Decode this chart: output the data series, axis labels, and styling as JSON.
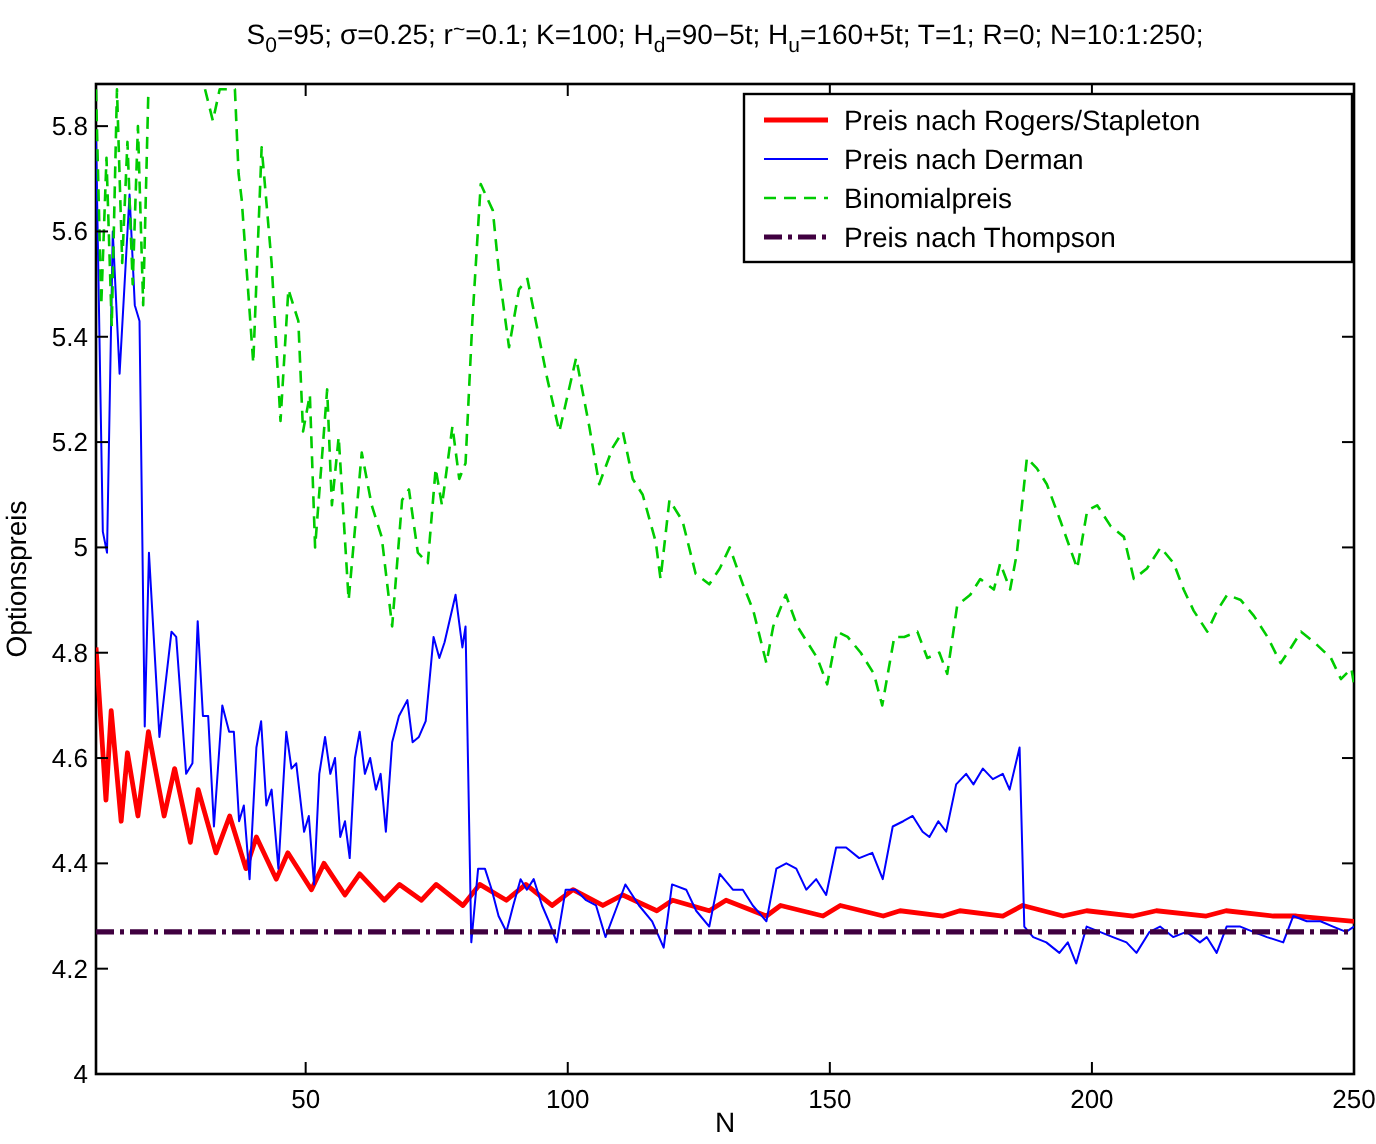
{
  "chart_data": {
    "type": "line",
    "title": "S$_{0}$=95; σ=0.25; r$^{~}$=0.1; K=100; H$_{d}$=90−5t; H$_{u}$=160+5t; T=1; R=0; N=10:1:250;",
    "xlabel": "N",
    "ylabel": "Optionspreis",
    "xlim": [
      10,
      250
    ],
    "ylim": [
      4,
      5.88
    ],
    "xticks": [
      50,
      100,
      150,
      200,
      250
    ],
    "yticks": [
      4,
      4.2,
      4.4,
      4.6,
      4.8,
      5,
      5.2,
      5.4,
      5.6,
      5.8
    ],
    "grid": false,
    "legend": "top right",
    "marker": "none",
    "series": [
      {
        "name": "Preis nach Rogers/Stapleton",
        "color": "#ff0000",
        "line_style": "solid",
        "x": [
          10,
          11.9,
          12.9,
          14.8,
          16,
          18,
          20,
          23,
          25,
          28,
          29.5,
          32.9,
          35.5,
          38.6,
          40.6,
          44.4,
          46.6,
          51.1,
          53.5,
          57.5,
          60.3,
          65,
          67.9,
          72.1,
          74.9,
          80,
          83.2,
          88.3,
          92,
          97,
          101,
          106.7,
          110.5,
          117,
          120,
          127,
          130.2,
          137.9,
          140.6,
          148.7,
          152,
          160.2,
          163.4,
          171.6,
          174.8,
          183,
          186.8,
          194.5,
          199,
          207.9,
          212.3,
          221.8,
          225.6,
          234.6,
          239,
          250
        ],
        "values": [
          4.81,
          4.52,
          4.69,
          4.48,
          4.61,
          4.49,
          4.65,
          4.49,
          4.58,
          4.44,
          4.54,
          4.42,
          4.49,
          4.39,
          4.45,
          4.37,
          4.42,
          4.35,
          4.4,
          4.34,
          4.38,
          4.33,
          4.36,
          4.33,
          4.36,
          4.32,
          4.36,
          4.33,
          4.36,
          4.32,
          4.35,
          4.32,
          4.34,
          4.31,
          4.33,
          4.31,
          4.33,
          4.3,
          4.32,
          4.3,
          4.32,
          4.3,
          4.31,
          4.3,
          4.31,
          4.3,
          4.32,
          4.3,
          4.31,
          4.3,
          4.31,
          4.3,
          4.31,
          4.3,
          4.3,
          4.29
        ]
      },
      {
        "name": "Preis nach Derman",
        "color": "#0000ff",
        "line_style": "solid",
        "x": [
          10,
          11.3,
          12.1,
          13.2,
          14.5,
          16.4,
          17.4,
          18.3,
          19.3,
          20.1,
          22.1,
          24.4,
          25.3,
          27.2,
          28.4,
          29.4,
          30.4,
          31.4,
          32.5,
          34.1,
          35.4,
          36.3,
          37.3,
          38.2,
          39.3,
          40.6,
          41.5,
          42.5,
          43.5,
          44.8,
          46.3,
          47.3,
          48.2,
          49.7,
          50.6,
          51.6,
          52.6,
          53.7,
          54.7,
          55.6,
          56.6,
          57.5,
          58.4,
          59.4,
          60.3,
          61.3,
          62.3,
          63.4,
          64.3,
          65.3,
          66.5,
          67.8,
          69.4,
          70.4,
          71.6,
          72.9,
          74.4,
          75.5,
          76.5,
          78.6,
          79.9,
          80.5,
          81.6,
          82.9,
          84.2,
          85.5,
          86.8,
          88.3,
          89.6,
          91,
          92.2,
          93.5,
          95.1,
          96.4,
          97.9,
          99.6,
          101.5,
          103.5,
          105.4,
          107.2,
          109.1,
          111,
          113.6,
          116.1,
          118.3,
          119.9,
          122.6,
          124.5,
          127,
          129,
          131.5,
          133.4,
          135.3,
          137.9,
          139.8,
          141.7,
          143.6,
          145.5,
          147.4,
          149.3,
          151.2,
          153.1,
          155.6,
          158.1,
          160.1,
          162,
          164,
          165.8,
          167.7,
          169,
          170.7,
          172.2,
          174.1,
          176,
          177.4,
          179.2,
          181.1,
          183,
          184.3,
          186.2,
          187.1,
          188.8,
          191.3,
          193.8,
          195.4,
          197,
          199,
          201.5,
          204,
          206.6,
          208.5,
          211,
          213,
          215.5,
          218,
          220.6,
          221.9,
          223.8,
          225.7,
          228.3,
          230.8,
          233.4,
          236.5,
          238.4,
          241,
          243.6,
          246,
          248.5,
          250
        ],
        "values": [
          5.78,
          5.03,
          4.99,
          5.6,
          5.33,
          5.67,
          5.46,
          5.43,
          4.66,
          4.99,
          4.64,
          4.84,
          4.83,
          4.57,
          4.59,
          4.86,
          4.68,
          4.68,
          4.47,
          4.7,
          4.65,
          4.65,
          4.48,
          4.51,
          4.37,
          4.62,
          4.67,
          4.51,
          4.54,
          4.39,
          4.65,
          4.58,
          4.59,
          4.46,
          4.49,
          4.36,
          4.57,
          4.64,
          4.57,
          4.6,
          4.45,
          4.48,
          4.41,
          4.6,
          4.65,
          4.57,
          4.6,
          4.54,
          4.57,
          4.46,
          4.63,
          4.68,
          4.71,
          4.63,
          4.64,
          4.67,
          4.83,
          4.79,
          4.82,
          4.91,
          4.81,
          4.85,
          4.25,
          4.39,
          4.39,
          4.35,
          4.3,
          4.27,
          4.32,
          4.37,
          4.35,
          4.37,
          4.32,
          4.29,
          4.25,
          4.35,
          4.35,
          4.33,
          4.32,
          4.26,
          4.31,
          4.36,
          4.32,
          4.29,
          4.24,
          4.36,
          4.35,
          4.31,
          4.28,
          4.38,
          4.35,
          4.35,
          4.32,
          4.29,
          4.39,
          4.4,
          4.39,
          4.35,
          4.37,
          4.34,
          4.43,
          4.43,
          4.41,
          4.42,
          4.37,
          4.47,
          4.48,
          4.49,
          4.46,
          4.45,
          4.48,
          4.46,
          4.55,
          4.57,
          4.55,
          4.58,
          4.56,
          4.57,
          4.54,
          4.62,
          4.28,
          4.26,
          4.25,
          4.23,
          4.25,
          4.21,
          4.28,
          4.27,
          4.26,
          4.25,
          4.23,
          4.27,
          4.28,
          4.26,
          4.27,
          4.25,
          4.26,
          4.23,
          4.28,
          4.28,
          4.27,
          4.26,
          4.25,
          4.3,
          4.29,
          4.29,
          4.28,
          4.27,
          4.28
        ]
      },
      {
        "name": "Binomialpreis",
        "color": "#00cc00",
        "line_style": "dashed",
        "x": [
          10,
          11,
          12,
          13,
          14,
          15,
          16,
          17,
          18,
          19,
          20,
          25,
          30.8,
          32.3,
          33.6,
          36.5,
          37.2,
          37.8,
          40,
          41.6,
          42.3,
          43.5,
          45.2,
          46.7,
          48.6,
          49.5,
          50.8,
          51.8,
          54.1,
          55,
          56.3,
          58.2,
          60.7,
          62.6,
          64.5,
          66.5,
          68.4,
          69.7,
          71.4,
          73.3,
          74.8,
          76,
          78,
          79.3,
          80.5,
          81.8,
          83.4,
          85.7,
          86.9,
          88.8,
          90.7,
          92.3,
          93.9,
          96.1,
          98.4,
          101.6,
          104.1,
          106,
          108.6,
          110.5,
          112.4,
          114.3,
          116.8,
          117.7,
          119.4,
          121.9,
          124.4,
          127,
          129,
          130.9,
          133.4,
          135.4,
          137.9,
          139.2,
          141.6,
          143.8,
          145.7,
          147.6,
          149.5,
          151.4,
          153.4,
          155.9,
          158.4,
          160,
          162.3,
          164.2,
          166.7,
          168.6,
          170.9,
          172.4,
          174.3,
          176.8,
          178.7,
          181.3,
          182.5,
          184.4,
          185.7,
          187.6,
          189.5,
          191.4,
          194,
          197.2,
          199.1,
          201,
          203.6,
          206.1,
          208,
          210.5,
          213.1,
          215.6,
          217.5,
          219.4,
          222,
          223.9,
          225.8,
          228.4,
          230.9,
          233.5,
          236,
          238,
          239.9,
          242.4,
          245.6,
          247.5,
          249.5,
          250
        ],
        "values": [
          5.87,
          5.46,
          5.74,
          5.42,
          5.87,
          5.54,
          5.77,
          5.5,
          5.8,
          5.46,
          5.87,
          null,
          5.87,
          5.81,
          5.87,
          5.87,
          5.71,
          5.66,
          5.35,
          5.76,
          5.68,
          5.54,
          5.24,
          5.49,
          5.43,
          5.22,
          5.29,
          5.0,
          5.3,
          5.08,
          5.21,
          4.9,
          5.18,
          5.08,
          5.02,
          4.85,
          5.09,
          5.11,
          4.99,
          4.97,
          5.15,
          5.08,
          5.23,
          5.13,
          5.16,
          5.43,
          5.69,
          5.64,
          5.52,
          5.38,
          5.49,
          5.51,
          5.43,
          5.32,
          5.22,
          5.36,
          5.23,
          5.12,
          5.19,
          5.22,
          5.13,
          5.1,
          5.01,
          4.94,
          5.09,
          5.05,
          4.95,
          4.93,
          4.96,
          5.0,
          4.93,
          4.88,
          4.78,
          4.85,
          4.91,
          4.85,
          4.82,
          4.79,
          4.74,
          4.84,
          4.83,
          4.8,
          4.76,
          4.7,
          4.83,
          4.83,
          4.84,
          4.79,
          4.8,
          4.76,
          4.89,
          4.91,
          4.94,
          4.92,
          4.97,
          4.92,
          4.99,
          5.17,
          5.15,
          5.12,
          5.05,
          4.96,
          5.07,
          5.08,
          5.04,
          5.02,
          4.94,
          4.96,
          5.0,
          4.97,
          4.92,
          4.88,
          4.84,
          4.88,
          4.91,
          4.9,
          4.87,
          4.83,
          4.78,
          4.81,
          4.84,
          4.82,
          4.79,
          4.75,
          4.77,
          4.74
        ]
      },
      {
        "name": "Preis nach Thompson",
        "color": "#400040",
        "line_style": "dashdot",
        "x": [
          10,
          250
        ],
        "values": [
          4.27,
          4.27
        ]
      }
    ]
  }
}
